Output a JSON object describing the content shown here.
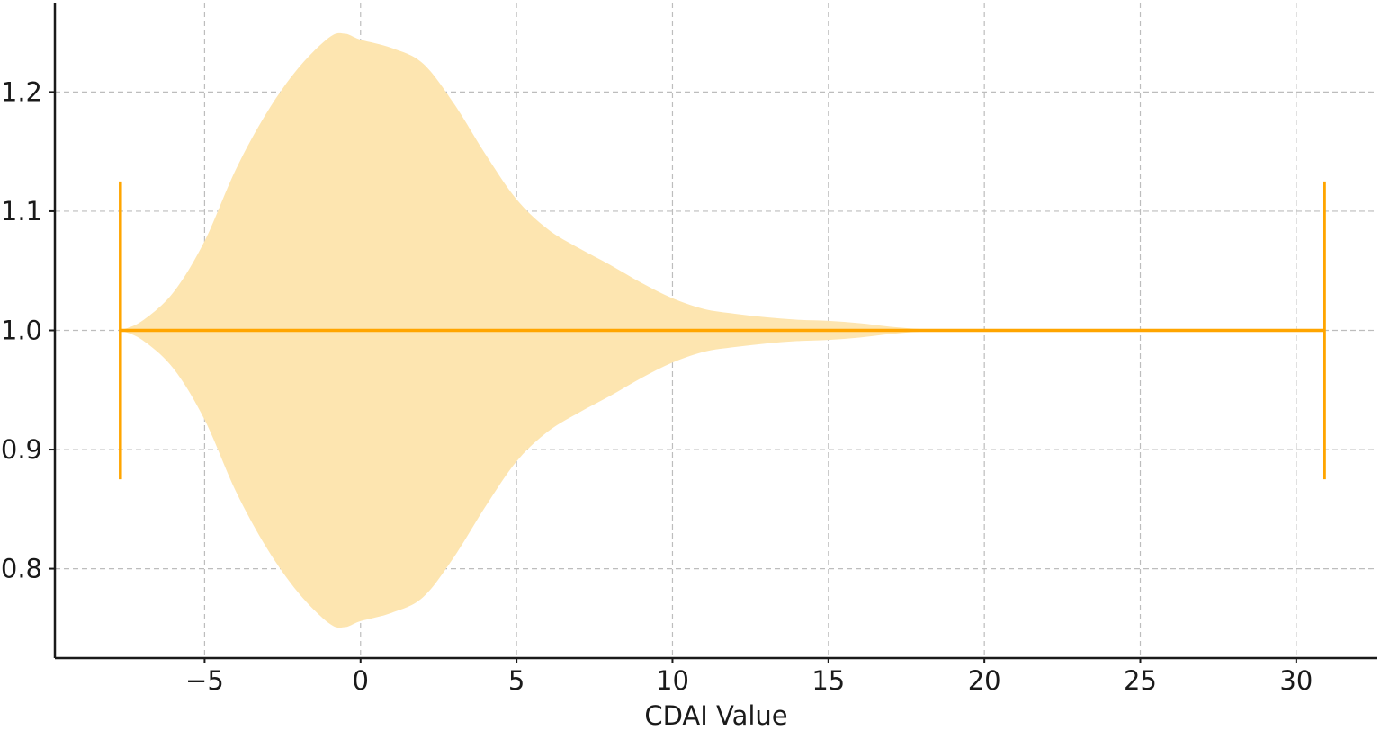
{
  "chart_data": {
    "type": "violin",
    "orientation": "horizontal",
    "xlabel": "CDAI Value",
    "ylabel": "",
    "title": "",
    "xlim": [
      -9.8,
      32.6
    ],
    "ylim": [
      0.725,
      1.275
    ],
    "xticks": [
      -5,
      0,
      5,
      10,
      15,
      20,
      25,
      30
    ],
    "yticks": [
      0.8,
      0.9,
      1.0,
      1.1,
      1.2
    ],
    "xtick_labels": [
      "−5",
      "0",
      "5",
      "10",
      "15",
      "20",
      "25",
      "30"
    ],
    "ytick_labels": [
      "0.8",
      "0.9",
      "1.0",
      "1.1",
      "1.2"
    ],
    "grid": true,
    "position": 1.0,
    "min": -7.7,
    "max": 30.9,
    "cap_halfwidth": 0.125,
    "density_halfwidth": [
      {
        "x": -7.7,
        "w": 0.0
      },
      {
        "x": -7.0,
        "w": 0.008
      },
      {
        "x": -6.0,
        "w": 0.032
      },
      {
        "x": -5.0,
        "w": 0.075
      },
      {
        "x": -4.0,
        "w": 0.135
      },
      {
        "x": -3.0,
        "w": 0.183
      },
      {
        "x": -2.0,
        "w": 0.22
      },
      {
        "x": -1.0,
        "w": 0.246
      },
      {
        "x": -0.5,
        "w": 0.249
      },
      {
        "x": 0.0,
        "w": 0.244
      },
      {
        "x": 1.0,
        "w": 0.237
      },
      {
        "x": 2.0,
        "w": 0.224
      },
      {
        "x": 3.0,
        "w": 0.19
      },
      {
        "x": 4.0,
        "w": 0.148
      },
      {
        "x": 5.0,
        "w": 0.11
      },
      {
        "x": 6.0,
        "w": 0.085
      },
      {
        "x": 7.0,
        "w": 0.069
      },
      {
        "x": 8.0,
        "w": 0.055
      },
      {
        "x": 9.0,
        "w": 0.04
      },
      {
        "x": 10.0,
        "w": 0.027
      },
      {
        "x": 11.0,
        "w": 0.018
      },
      {
        "x": 12.0,
        "w": 0.014
      },
      {
        "x": 13.0,
        "w": 0.011
      },
      {
        "x": 14.0,
        "w": 0.009
      },
      {
        "x": 15.0,
        "w": 0.008
      },
      {
        "x": 16.0,
        "w": 0.006
      },
      {
        "x": 17.0,
        "w": 0.003
      },
      {
        "x": 18.0,
        "w": 0.001
      },
      {
        "x": 19.0,
        "w": 0.0
      }
    ],
    "colors": {
      "body": "#fde5b0",
      "lines": "#ffa500",
      "grid": "#bdbdbd",
      "axis": "#1a1a1a"
    }
  }
}
